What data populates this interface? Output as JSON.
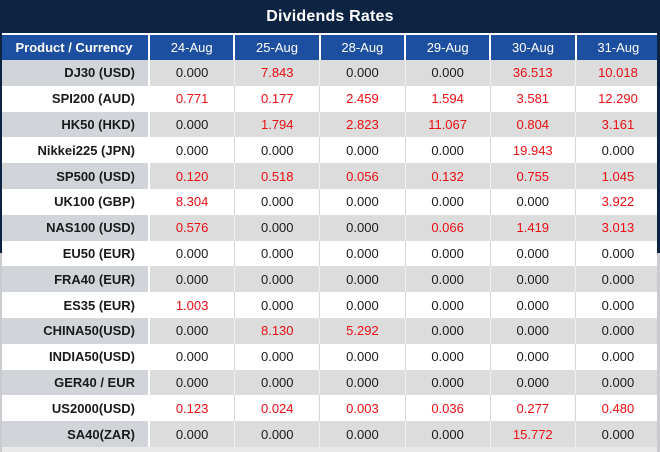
{
  "title": "Dividends Rates",
  "colors": {
    "title_bg": "#0d2342",
    "header_bg": "#1d4fa1",
    "red": "#ec0d12",
    "value_black": "#1a1a1a",
    "striped_product_bg": "#d1d4d9",
    "striped_value_bg": "#dcdcdc"
  },
  "table": {
    "product_header": "Product / Currency",
    "date_headers": [
      "24-Aug",
      "25-Aug",
      "28-Aug",
      "29-Aug",
      "30-Aug",
      "31-Aug"
    ],
    "rows": [
      {
        "product": "DJ30 (USD)",
        "values": [
          "0.000",
          "7.843",
          "0.000",
          "0.000",
          "36.513",
          "10.018"
        ],
        "red": [
          false,
          true,
          false,
          false,
          true,
          true
        ]
      },
      {
        "product": "SPI200 (AUD)",
        "values": [
          "0.771",
          "0.177",
          "2.459",
          "1.594",
          "3.581",
          "12.290"
        ],
        "red": [
          true,
          true,
          true,
          true,
          true,
          true
        ]
      },
      {
        "product": "HK50 (HKD)",
        "values": [
          "0.000",
          "1.794",
          "2.823",
          "11.067",
          "0.804",
          "3.161"
        ],
        "red": [
          false,
          true,
          true,
          true,
          true,
          true
        ]
      },
      {
        "product": "Nikkei225 (JPN)",
        "values": [
          "0.000",
          "0.000",
          "0.000",
          "0.000",
          "19.943",
          "0.000"
        ],
        "red": [
          false,
          false,
          false,
          false,
          true,
          false
        ]
      },
      {
        "product": "SP500 (USD)",
        "values": [
          "0.120",
          "0.518",
          "0.056",
          "0.132",
          "0.755",
          "1.045"
        ],
        "red": [
          true,
          true,
          true,
          true,
          true,
          true
        ]
      },
      {
        "product": "UK100 (GBP)",
        "values": [
          "8.304",
          "0.000",
          "0.000",
          "0.000",
          "0.000",
          "3.922"
        ],
        "red": [
          true,
          false,
          false,
          false,
          false,
          true
        ]
      },
      {
        "product": "NAS100 (USD)",
        "values": [
          "0.576",
          "0.000",
          "0.000",
          "0.066",
          "1.419",
          "3.013"
        ],
        "red": [
          true,
          false,
          false,
          true,
          true,
          true
        ]
      },
      {
        "product": "EU50 (EUR)",
        "values": [
          "0.000",
          "0.000",
          "0.000",
          "0.000",
          "0.000",
          "0.000"
        ],
        "red": [
          false,
          false,
          false,
          false,
          false,
          false
        ]
      },
      {
        "product": "FRA40 (EUR)",
        "values": [
          "0.000",
          "0.000",
          "0.000",
          "0.000",
          "0.000",
          "0.000"
        ],
        "red": [
          false,
          false,
          false,
          false,
          false,
          false
        ]
      },
      {
        "product": "ES35 (EUR)",
        "values": [
          "1.003",
          "0.000",
          "0.000",
          "0.000",
          "0.000",
          "0.000"
        ],
        "red": [
          true,
          false,
          false,
          false,
          false,
          false
        ]
      },
      {
        "product": "CHINA50(USD)",
        "values": [
          "0.000",
          "8.130",
          "5.292",
          "0.000",
          "0.000",
          "0.000"
        ],
        "red": [
          false,
          true,
          true,
          false,
          false,
          false
        ]
      },
      {
        "product": "INDIA50(USD)",
        "values": [
          "0.000",
          "0.000",
          "0.000",
          "0.000",
          "0.000",
          "0.000"
        ],
        "red": [
          false,
          false,
          false,
          false,
          false,
          false
        ]
      },
      {
        "product": "GER40 / EUR",
        "values": [
          "0.000",
          "0.000",
          "0.000",
          "0.000",
          "0.000",
          "0.000"
        ],
        "red": [
          false,
          false,
          false,
          false,
          false,
          false
        ]
      },
      {
        "product": "US2000(USD)",
        "values": [
          "0.123",
          "0.024",
          "0.003",
          "0.036",
          "0.277",
          "0.480"
        ],
        "red": [
          true,
          true,
          true,
          true,
          true,
          true
        ]
      },
      {
        "product": "SA40(ZAR)",
        "values": [
          "0.000",
          "0.000",
          "0.000",
          "0.000",
          "15.772",
          "0.000"
        ],
        "red": [
          false,
          false,
          false,
          false,
          true,
          false
        ]
      }
    ]
  }
}
